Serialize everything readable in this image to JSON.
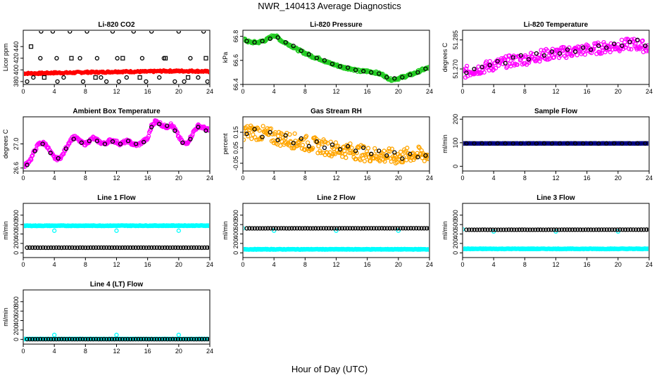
{
  "page": {
    "title": "NWR_140413  Average Diagnostics",
    "x_axis_title": "Hour of Day (UTC)"
  },
  "colors": {
    "red": "#ff0000",
    "green": "#22cc22",
    "magenta": "#ff00ff",
    "orange": "#ffa500",
    "cyan": "#00ffff",
    "navy": "#000080",
    "black": "#000000"
  },
  "chart_data": [
    {
      "type": "scatter",
      "title": "Li-820 CO2",
      "ylabel": "Licor ppm",
      "xlim": [
        0,
        24
      ],
      "ylim": [
        375,
        468
      ],
      "xticks": [
        "0",
        "4",
        "8",
        "12",
        "16",
        "20",
        "24"
      ],
      "yticks": [
        "380",
        "400",
        "420",
        "440"
      ],
      "series": [
        {
          "color": "red",
          "marker": "dot",
          "density": "high",
          "x": [
            0,
            2,
            4,
            6,
            8,
            10,
            12,
            14,
            16,
            18,
            20,
            22,
            24
          ],
          "y": [
            394,
            394,
            395,
            395,
            396,
            396,
            397,
            397,
            397,
            398,
            398,
            398,
            397
          ],
          "spread": 1.5
        },
        {
          "color": "black",
          "marker": "circle",
          "x": [
            0.5,
            1.3,
            2.2,
            2.3,
            3.8,
            4.3,
            4.4,
            5.2,
            6,
            7.3,
            7.7,
            8.2,
            9.5,
            10,
            10.7,
            11.5,
            12.1,
            12.3,
            13.3,
            14.2,
            15.3,
            15.8,
            16.5,
            17.5,
            18.1,
            19.5,
            20,
            20.7,
            21.5,
            22.5,
            23.2,
            23.7
          ],
          "y": [
            380,
            387,
            420,
            466,
            466,
            420,
            380,
            387,
            466,
            420,
            380,
            466,
            420,
            387,
            380,
            466,
            420,
            380,
            387,
            466,
            420,
            380,
            466,
            387,
            420,
            380,
            466,
            380,
            420,
            387,
            466,
            380
          ]
        },
        {
          "color": "black",
          "marker": "square",
          "x": [
            1,
            2.7,
            6.2,
            9.3,
            12.8,
            15,
            18.3,
            21.2,
            23.5
          ],
          "y": [
            440,
            387,
            420,
            387,
            420,
            387,
            420,
            387,
            420
          ]
        }
      ]
    },
    {
      "type": "scatter",
      "title": "Li-820 Pressure",
      "ylabel": "kPa",
      "xlim": [
        0,
        24
      ],
      "ylim": [
        66.4,
        66.85
      ],
      "xticks": [
        "0",
        "4",
        "8",
        "12",
        "16",
        "20",
        "24"
      ],
      "yticks": [
        "66.4",
        "66.6",
        "66.8"
      ],
      "series": [
        {
          "color": "green",
          "marker": "circle",
          "density": "high",
          "x": [
            0,
            0.5,
            1,
            2,
            3,
            3.5,
            4,
            4.5,
            5,
            6,
            7,
            8,
            9,
            10,
            11,
            12,
            13,
            14,
            15,
            16,
            17,
            18,
            19,
            20,
            21,
            22,
            23,
            24
          ],
          "y": [
            66.78,
            66.76,
            66.75,
            66.75,
            66.77,
            66.79,
            66.81,
            66.79,
            66.76,
            66.73,
            66.69,
            66.66,
            66.63,
            66.61,
            66.58,
            66.56,
            66.54,
            66.53,
            66.51,
            66.51,
            66.5,
            66.48,
            66.44,
            66.45,
            66.47,
            66.49,
            66.52,
            66.54
          ],
          "spread": 0.01
        },
        {
          "color": "black",
          "marker": "circle",
          "x": [
            0.5,
            1.5,
            2.5,
            3.5,
            4.5,
            5.5,
            6.5,
            7.5,
            8.5,
            9.5,
            10.5,
            11.5,
            12.5,
            13.5,
            14.5,
            15.5,
            16.5,
            17.5,
            18.5,
            19.5,
            20.5,
            21.5,
            22.5,
            23.5
          ],
          "y": [
            66.76,
            66.75,
            66.76,
            66.78,
            66.79,
            66.75,
            66.72,
            66.68,
            66.65,
            66.62,
            66.6,
            66.57,
            66.55,
            66.54,
            66.52,
            66.51,
            66.5,
            66.49,
            66.46,
            66.45,
            66.46,
            66.48,
            66.5,
            66.53
          ]
        }
      ]
    },
    {
      "type": "scatter",
      "title": "Li-820 Temperature",
      "ylabel": "degrees C",
      "xlim": [
        0,
        24
      ],
      "ylim": [
        51.262,
        51.29
      ],
      "xticks": [
        "0",
        "4",
        "8",
        "12",
        "16",
        "20",
        "24"
      ],
      "yticks": [
        "51.270",
        "51.285"
      ],
      "series": [
        {
          "color": "magenta",
          "marker": "circle",
          "density": "high",
          "x": [
            0,
            2,
            4,
            6,
            8,
            10,
            12,
            14,
            16,
            18,
            20,
            22,
            24
          ],
          "y": [
            51.268,
            51.27,
            51.272,
            51.274,
            51.275,
            51.277,
            51.278,
            51.279,
            51.28,
            51.281,
            51.282,
            51.283,
            51.281
          ],
          "spread": 0.003
        },
        {
          "color": "black",
          "marker": "circle",
          "x": [
            0.5,
            1.5,
            2.5,
            3.5,
            4.5,
            5.5,
            6.5,
            7.5,
            8.5,
            9.5,
            10.5,
            11.5,
            12.5,
            13.5,
            14.5,
            15.5,
            16.5,
            17.5,
            18.5,
            19.5,
            20.5,
            21.5,
            22.5,
            23.5
          ],
          "y": [
            51.268,
            51.27,
            51.271,
            51.272,
            51.274,
            51.273,
            51.276,
            51.277,
            51.275,
            51.278,
            51.277,
            51.279,
            51.278,
            51.28,
            51.279,
            51.281,
            51.28,
            51.282,
            51.281,
            51.283,
            51.282,
            51.284,
            51.285,
            51.282
          ]
        }
      ]
    },
    {
      "type": "scatter",
      "title": "Ambient Box Temperature",
      "ylabel": "degrees C",
      "xlim": [
        0,
        24
      ],
      "ylim": [
        26.55,
        27.45
      ],
      "xticks": [
        "0",
        "4",
        "8",
        "12",
        "16",
        "20",
        "24"
      ],
      "yticks": [
        "26.6",
        "27.0"
      ],
      "series": [
        {
          "color": "magenta",
          "marker": "circle",
          "density": "high",
          "x": [
            0,
            0.5,
            1,
            1.5,
            2,
            2.5,
            3,
            3.5,
            4,
            4.5,
            5,
            5.5,
            6,
            6.5,
            7,
            7.5,
            8,
            8.5,
            9,
            9.5,
            10,
            10.5,
            11,
            11.5,
            12,
            12.5,
            13,
            13.5,
            14,
            14.5,
            15,
            15.5,
            16,
            16.5,
            17,
            17.5,
            18,
            18.5,
            19,
            19.5,
            20,
            20.5,
            21,
            21.5,
            22,
            22.5,
            23,
            23.5,
            24
          ],
          "y": [
            26.62,
            26.68,
            26.75,
            26.9,
            27.0,
            27.02,
            26.98,
            26.86,
            26.77,
            26.75,
            26.8,
            26.93,
            27.05,
            27.12,
            27.08,
            27.02,
            27.0,
            27.05,
            27.1,
            27.06,
            27.02,
            27.0,
            27.05,
            27.06,
            27.03,
            27.0,
            27.03,
            27.05,
            27.0,
            26.98,
            27.0,
            27.05,
            27.08,
            27.3,
            27.38,
            27.35,
            27.3,
            27.28,
            27.32,
            27.25,
            27.12,
            27.02,
            27.0,
            27.1,
            27.22,
            27.3,
            27.28,
            27.25,
            27.22
          ],
          "spread": 0.025
        },
        {
          "color": "black",
          "marker": "circle",
          "x": [
            0.5,
            1.5,
            2.5,
            3.5,
            4.5,
            5.5,
            6.5,
            7.5,
            8.5,
            9.5,
            10.5,
            11.5,
            12.5,
            13.5,
            14.5,
            15.5,
            16.5,
            17.5,
            18.5,
            19.5,
            20.5,
            21.5,
            22.5,
            23.5
          ],
          "y": [
            26.65,
            26.88,
            27.0,
            26.85,
            26.76,
            26.92,
            27.08,
            27.02,
            27.05,
            27.05,
            27.0,
            27.04,
            27.0,
            27.05,
            27.0,
            27.03,
            27.28,
            27.33,
            27.3,
            27.22,
            27.02,
            27.08,
            27.28,
            27.22
          ]
        }
      ]
    },
    {
      "type": "scatter",
      "title": "Gas Stream RH",
      "ylabel": "percent",
      "xlim": [
        0,
        24
      ],
      "ylim": [
        -0.1,
        0.25
      ],
      "xticks": [
        "0",
        "4",
        "8",
        "12",
        "16",
        "20",
        "24"
      ],
      "yticks": [
        "-0.05",
        "0.05",
        "0.15"
      ],
      "series": [
        {
          "color": "orange",
          "marker": "circle",
          "density": "high",
          "x": [
            0,
            2,
            4,
            6,
            8,
            10,
            12,
            14,
            16,
            18,
            20,
            22,
            24
          ],
          "y": [
            0.15,
            0.15,
            0.12,
            0.1,
            0.08,
            0.06,
            0.04,
            0.03,
            0.01,
            0.0,
            -0.01,
            0.01,
            0.0
          ],
          "spread": 0.05
        },
        {
          "color": "black",
          "marker": "circle",
          "x": [
            0.5,
            1.5,
            2.5,
            3.5,
            4.5,
            5.5,
            6.5,
            7.5,
            8.5,
            9.5,
            10.5,
            11.5,
            12.5,
            13.5,
            14.5,
            15.5,
            16.5,
            17.5,
            18.5,
            19.5,
            20.5,
            21.5,
            22.5,
            23.5
          ],
          "y": [
            0.14,
            0.17,
            0.12,
            0.15,
            0.1,
            0.13,
            0.08,
            0.11,
            0.06,
            0.09,
            0.05,
            0.07,
            0.04,
            0.06,
            0.03,
            0.05,
            0.01,
            0.03,
            0.0,
            0.02,
            -0.02,
            0.01,
            -0.01,
            0.0
          ]
        }
      ]
    },
    {
      "type": "scatter",
      "title": "Sample Flow",
      "ylabel": "ml/min",
      "xlim": [
        0,
        24
      ],
      "ylim": [
        -20,
        210
      ],
      "xticks": [
        "0",
        "4",
        "8",
        "12",
        "16",
        "20",
        "24"
      ],
      "yticks": [
        "0",
        "100",
        "200"
      ],
      "series": [
        {
          "color": "navy",
          "marker": "circle",
          "density": "high",
          "x": [
            0,
            24
          ],
          "y": [
            97,
            97
          ],
          "spread": 0.5
        },
        {
          "color": "black",
          "marker": "circle",
          "x": [
            0.5,
            1.5,
            2.5,
            3.5,
            4.5,
            5.5,
            6.5,
            7.5,
            8.5,
            9.5,
            10.5,
            11.5,
            12.5,
            13.5,
            14.5,
            15.5,
            16.5,
            17.5,
            18.5,
            19.5,
            20.5,
            21.5,
            22.5,
            23.5
          ],
          "y": [
            97,
            97,
            97,
            97,
            97,
            97,
            97,
            97,
            97,
            97,
            97,
            97,
            97,
            97,
            97,
            97,
            97,
            97,
            97,
            97,
            97,
            97,
            97,
            97
          ]
        }
      ]
    },
    {
      "type": "scatter",
      "title": "Line 1 Flow",
      "ylabel": "ml/min",
      "xlim": [
        0,
        24
      ],
      "ylim": [
        -100,
        1050
      ],
      "xticks": [
        "0",
        "4",
        "8",
        "12",
        "16",
        "20",
        "24"
      ],
      "yticks": [
        "0",
        "200",
        "400",
        "600",
        "800"
      ],
      "series": [
        {
          "color": "cyan",
          "marker": "circle",
          "density": "high",
          "x": [
            0,
            24
          ],
          "y": [
            575,
            578
          ],
          "spread": 6
        },
        {
          "color": "cyan",
          "marker": "circle",
          "x": [
            4,
            12,
            20
          ],
          "y": [
            470,
            470,
            470
          ]
        },
        {
          "color": "black",
          "marker": "circle",
          "density": "medium",
          "x": [
            0.5,
            24
          ],
          "y": [
            110,
            110
          ],
          "spread": 1
        }
      ]
    },
    {
      "type": "scatter",
      "title": "Line 2 Flow",
      "ylabel": "ml/min",
      "xlim": [
        0,
        24
      ],
      "ylim": [
        -100,
        1050
      ],
      "xticks": [
        "0",
        "4",
        "8",
        "12",
        "16",
        "20",
        "24"
      ],
      "yticks": [
        "0",
        "200",
        "400",
        "600",
        "800"
      ],
      "series": [
        {
          "color": "cyan",
          "marker": "circle",
          "density": "high",
          "x": [
            0,
            24
          ],
          "y": [
            75,
            75
          ],
          "spread": 6
        },
        {
          "color": "cyan",
          "marker": "circle",
          "x": [
            0,
            4,
            12,
            20
          ],
          "y": [
            520,
            470,
            470,
            470
          ]
        },
        {
          "color": "black",
          "marker": "circle",
          "density": "medium",
          "x": [
            0.5,
            24
          ],
          "y": [
            520,
            522
          ],
          "spread": 1
        }
      ]
    },
    {
      "type": "scatter",
      "title": "Line 3 Flow",
      "ylabel": "ml/min",
      "xlim": [
        0,
        24
      ],
      "ylim": [
        -100,
        1050
      ],
      "xticks": [
        "0",
        "4",
        "8",
        "12",
        "16",
        "20",
        "24"
      ],
      "yticks": [
        "0",
        "200",
        "400",
        "600",
        "800"
      ],
      "series": [
        {
          "color": "cyan",
          "marker": "circle",
          "density": "high",
          "x": [
            0,
            24
          ],
          "y": [
            85,
            85
          ],
          "spread": 6
        },
        {
          "color": "cyan",
          "marker": "circle",
          "x": [
            0,
            4,
            12,
            20
          ],
          "y": [
            500,
            455,
            455,
            455
          ]
        },
        {
          "color": "black",
          "marker": "circle",
          "density": "medium",
          "x": [
            0.5,
            24
          ],
          "y": [
            490,
            492
          ],
          "spread": 1
        }
      ]
    },
    {
      "type": "scatter",
      "title": "Line 4 (LT) Flow",
      "ylabel": "ml/min",
      "xlim": [
        0,
        24
      ],
      "ylim": [
        -100,
        1050
      ],
      "xticks": [
        "0",
        "4",
        "8",
        "12",
        "16",
        "20",
        "24"
      ],
      "yticks": [
        "0",
        "200",
        "400",
        "600",
        "800"
      ],
      "series": [
        {
          "color": "cyan",
          "marker": "circle",
          "density": "high",
          "x": [
            0,
            24
          ],
          "y": [
            8,
            8
          ],
          "spread": 2
        },
        {
          "color": "cyan",
          "marker": "circle",
          "x": [
            4,
            12,
            20
          ],
          "y": [
            95,
            95,
            95
          ]
        },
        {
          "color": "black",
          "marker": "circle",
          "density": "medium",
          "x": [
            0.5,
            24
          ],
          "y": [
            5,
            5
          ],
          "spread": 1
        }
      ]
    }
  ]
}
